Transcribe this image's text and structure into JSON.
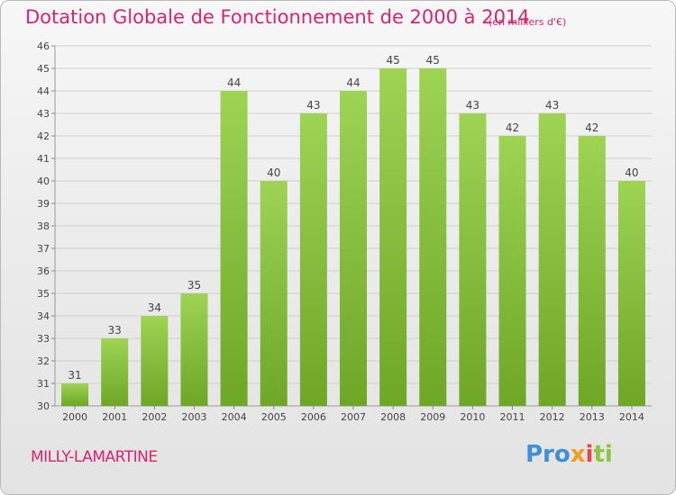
{
  "title": "Dotation Globale de Fonctionnement de 2000 à 2014",
  "subtitle": "(en milliers d'€)",
  "commune": "MILLY-LAMARTINE",
  "logo": {
    "p1": "Pro",
    "p2": "x",
    "p3": "i",
    "p4": "ti"
  },
  "colors": {
    "bar_top": "#9ed354",
    "bar_bottom": "#6ea626",
    "title": "#d6246d",
    "grid": "#cfcfcf"
  },
  "chart_data": {
    "type": "bar",
    "title": "Dotation Globale de Fonctionnement de 2000 à 2014",
    "subtitle": "(en milliers d'€)",
    "categories": [
      "2000",
      "2001",
      "2002",
      "2003",
      "2004",
      "2005",
      "2006",
      "2007",
      "2008",
      "2009",
      "2010",
      "2011",
      "2012",
      "2013",
      "2014"
    ],
    "values": [
      31,
      33,
      34,
      35,
      44,
      40,
      43,
      44,
      45,
      45,
      43,
      42,
      43,
      42,
      40
    ],
    "ylim": [
      30,
      46
    ],
    "yticks": [
      30,
      31,
      32,
      33,
      34,
      35,
      36,
      37,
      38,
      39,
      40,
      41,
      42,
      43,
      44,
      45,
      46
    ],
    "grid": true,
    "xlabel": "",
    "ylabel": ""
  }
}
